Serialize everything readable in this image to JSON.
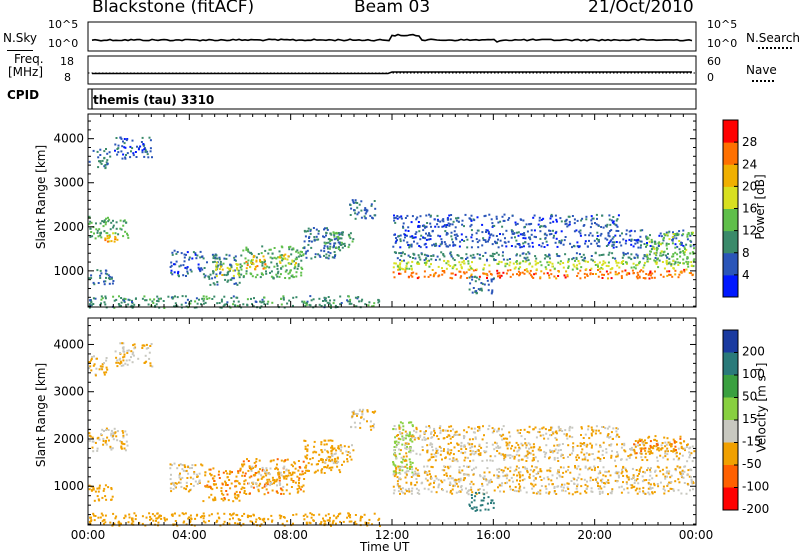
{
  "header": {
    "station": "Blackstone (fitACF)",
    "beam": "Beam 03",
    "date": "21/Oct/2010"
  },
  "top_panels": {
    "nsky_label": "N.Sky",
    "nsky_ticks": [
      "10^5",
      "10^0"
    ],
    "nsearch_label": "N.Search",
    "nsearch_ticks": [
      "10^5",
      "10^0"
    ],
    "freq_label": "Freq.",
    "freq_unit": "[MHz]",
    "freq_ticks": [
      "18",
      "8"
    ],
    "nave_label": "Nave",
    "nave_ticks": [
      "60",
      "0"
    ],
    "cpid_label": "CPID",
    "cpid_value": "themis (tau) 3310"
  },
  "chart_data": [
    {
      "type": "heatmap",
      "title": "Power",
      "ylabel": "Slant Range [km]",
      "xlabel": "",
      "ylim": [
        180,
        4560
      ],
      "xlim": [
        0,
        24
      ],
      "y_ticks": [
        1000,
        2000,
        3000,
        4000
      ],
      "x_ticks": [
        "00:00",
        "04:00",
        "08:00",
        "12:00",
        "16:00",
        "20:00",
        "00:00"
      ],
      "colorbar": {
        "label": "Power [dB]",
        "range": [
          0,
          32
        ],
        "ticks": [
          4,
          8,
          12,
          16,
          20,
          24,
          28
        ],
        "colors": [
          "#0018ff",
          "#2a55b8",
          "#3a8a6a",
          "#5fbf4a",
          "#d8e020",
          "#f0b000",
          "#ff7000",
          "#ff0000"
        ]
      },
      "regions": [
        {
          "t0": 0.0,
          "t1": 0.9,
          "r0": 3350,
          "r1": 3800,
          "value": 9
        },
        {
          "t0": 1.0,
          "t1": 2.5,
          "r0": 3550,
          "r1": 4050,
          "value": 6
        },
        {
          "t0": 0.0,
          "t1": 1.6,
          "r0": 1750,
          "r1": 2250,
          "value": 12
        },
        {
          "t0": 0.6,
          "t1": 1.3,
          "r0": 1680,
          "r1": 1900,
          "value": 22
        },
        {
          "t0": 0.0,
          "t1": 1.0,
          "r0": 700,
          "r1": 1050,
          "value": 8
        },
        {
          "t0": 3.2,
          "t1": 4.5,
          "r0": 900,
          "r1": 1500,
          "value": 6
        },
        {
          "t0": 4.5,
          "t1": 6.0,
          "r0": 700,
          "r1": 1400,
          "value": 9
        },
        {
          "t0": 5.0,
          "t1": 6.0,
          "r0": 900,
          "r1": 1250,
          "value": 18
        },
        {
          "t0": 6.0,
          "t1": 8.5,
          "r0": 850,
          "r1": 1600,
          "value": 12
        },
        {
          "t0": 6.2,
          "t1": 7.0,
          "r0": 1050,
          "r1": 1400,
          "value": 22
        },
        {
          "t0": 7.5,
          "t1": 8.2,
          "r0": 1150,
          "r1": 1400,
          "value": 20
        },
        {
          "t0": 8.5,
          "t1": 10.0,
          "r0": 1300,
          "r1": 2000,
          "value": 8
        },
        {
          "t0": 9.3,
          "t1": 10.5,
          "r0": 1500,
          "r1": 1900,
          "value": 12
        },
        {
          "t0": 10.3,
          "t1": 11.3,
          "r0": 2200,
          "r1": 2650,
          "value": 7
        },
        {
          "t0": 12.0,
          "t1": 23.9,
          "r0": 1550,
          "r1": 1950,
          "value": 6
        },
        {
          "t0": 12.0,
          "t1": 21.0,
          "r0": 2000,
          "r1": 2300,
          "value": 6
        },
        {
          "t0": 12.0,
          "t1": 23.0,
          "r0": 1250,
          "r1": 1450,
          "value": 9
        },
        {
          "t0": 12.0,
          "t1": 23.9,
          "r0": 850,
          "r1": 1050,
          "value": 26
        },
        {
          "t0": 12.0,
          "t1": 23.9,
          "r0": 1050,
          "r1": 1250,
          "value": 17
        },
        {
          "t0": 15.0,
          "t1": 16.0,
          "r0": 500,
          "r1": 900,
          "value": 8
        },
        {
          "t0": 22.0,
          "t1": 23.9,
          "r0": 1150,
          "r1": 1900,
          "value": 14
        },
        {
          "t0": 0.0,
          "t1": 11.5,
          "r0": 180,
          "r1": 450,
          "value": 10
        }
      ]
    },
    {
      "type": "heatmap",
      "title": "Velocity",
      "ylabel": "Slant Range [km]",
      "xlabel": "Time UT",
      "ylim": [
        180,
        4560
      ],
      "xlim": [
        0,
        24
      ],
      "y_ticks": [
        1000,
        2000,
        3000,
        4000
      ],
      "x_ticks": [
        "00:00",
        "04:00",
        "08:00",
        "12:00",
        "16:00",
        "20:00",
        "00:00"
      ],
      "colorbar": {
        "label": "Velocity [m s",
        "label_sup": "-1",
        "label_end": "]",
        "tick_labels": [
          "200",
          "100",
          "50",
          "15",
          "-15",
          "-50",
          "-100",
          "-200"
        ],
        "colors": [
          "#1a3aa0",
          "#2a7a7a",
          "#3aa040",
          "#88d040",
          "#c8c8c0",
          "#f0a000",
          "#ff6000",
          "#ff0000"
        ]
      },
      "regions": [
        {
          "t0": 0.0,
          "t1": 0.9,
          "r0": 3350,
          "r1": 3800,
          "value": -15
        },
        {
          "t0": 1.0,
          "t1": 2.5,
          "r0": 3550,
          "r1": 4050,
          "value": -15
        },
        {
          "t0": 0.0,
          "t1": 1.6,
          "r0": 1750,
          "r1": 2250,
          "value": -15
        },
        {
          "t0": 0.0,
          "t1": 1.0,
          "r0": 700,
          "r1": 1050,
          "value": -40
        },
        {
          "t0": 3.2,
          "t1": 4.5,
          "r0": 900,
          "r1": 1500,
          "value": -15
        },
        {
          "t0": 4.5,
          "t1": 6.0,
          "r0": 700,
          "r1": 1400,
          "value": -45
        },
        {
          "t0": 6.0,
          "t1": 8.5,
          "r0": 850,
          "r1": 1600,
          "value": -45
        },
        {
          "t0": 6.3,
          "t1": 7.8,
          "r0": 1000,
          "r1": 1450,
          "value": -15
        },
        {
          "t0": 8.5,
          "t1": 10.0,
          "r0": 1300,
          "r1": 2000,
          "value": -40
        },
        {
          "t0": 9.3,
          "t1": 10.5,
          "r0": 1500,
          "r1": 1900,
          "value": -15
        },
        {
          "t0": 10.3,
          "t1": 11.3,
          "r0": 2200,
          "r1": 2650,
          "value": -15
        },
        {
          "t0": 12.0,
          "t1": 12.8,
          "r0": 1300,
          "r1": 2400,
          "value": 40
        },
        {
          "t0": 12.0,
          "t1": 23.9,
          "r0": 1550,
          "r1": 1950,
          "value": -15
        },
        {
          "t0": 12.0,
          "t1": 21.0,
          "r0": 2000,
          "r1": 2300,
          "value": -15
        },
        {
          "t0": 12.0,
          "t1": 23.9,
          "r0": 850,
          "r1": 1450,
          "value": -15
        },
        {
          "t0": 15.0,
          "t1": 16.0,
          "r0": 500,
          "r1": 900,
          "value": 120
        },
        {
          "t0": 21.5,
          "t1": 23.5,
          "r0": 1700,
          "r1": 2100,
          "value": -45
        },
        {
          "t0": 0.0,
          "t1": 11.5,
          "r0": 180,
          "r1": 450,
          "value": -40
        }
      ]
    }
  ]
}
